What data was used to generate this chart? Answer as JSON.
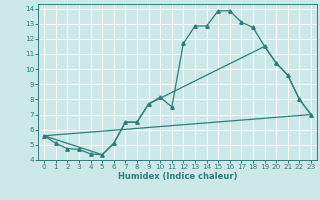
{
  "xlabel": "Humidex (Indice chaleur)",
  "xlim": [
    -0.5,
    23.5
  ],
  "ylim": [
    4,
    14.3
  ],
  "xticks": [
    0,
    1,
    2,
    3,
    4,
    5,
    6,
    7,
    8,
    9,
    10,
    11,
    12,
    13,
    14,
    15,
    16,
    17,
    18,
    19,
    20,
    21,
    22,
    23
  ],
  "yticks": [
    4,
    5,
    6,
    7,
    8,
    9,
    10,
    11,
    12,
    13,
    14
  ],
  "bg_color": "#cce8e8",
  "line_color": "#2e7d7d",
  "line1_x": [
    0,
    1,
    2,
    3,
    4,
    5,
    6,
    7,
    8,
    9,
    10,
    11,
    12,
    13,
    14,
    15,
    16,
    17,
    18,
    19,
    20,
    21,
    22,
    23
  ],
  "line1_y": [
    5.6,
    5.1,
    4.75,
    4.7,
    4.4,
    4.35,
    5.1,
    6.5,
    6.5,
    7.7,
    8.15,
    7.5,
    11.7,
    12.85,
    12.85,
    13.85,
    13.85,
    13.1,
    12.75,
    11.5,
    10.4,
    9.6,
    8.0,
    7.0
  ],
  "line2_x": [
    0,
    5,
    6,
    7,
    8,
    9,
    19,
    20,
    21,
    22,
    23
  ],
  "line2_y": [
    5.6,
    4.35,
    5.1,
    6.5,
    6.5,
    7.7,
    11.5,
    10.4,
    9.6,
    8.0,
    7.0
  ],
  "line3_x": [
    0,
    23
  ],
  "line3_y": [
    5.6,
    7.0
  ]
}
